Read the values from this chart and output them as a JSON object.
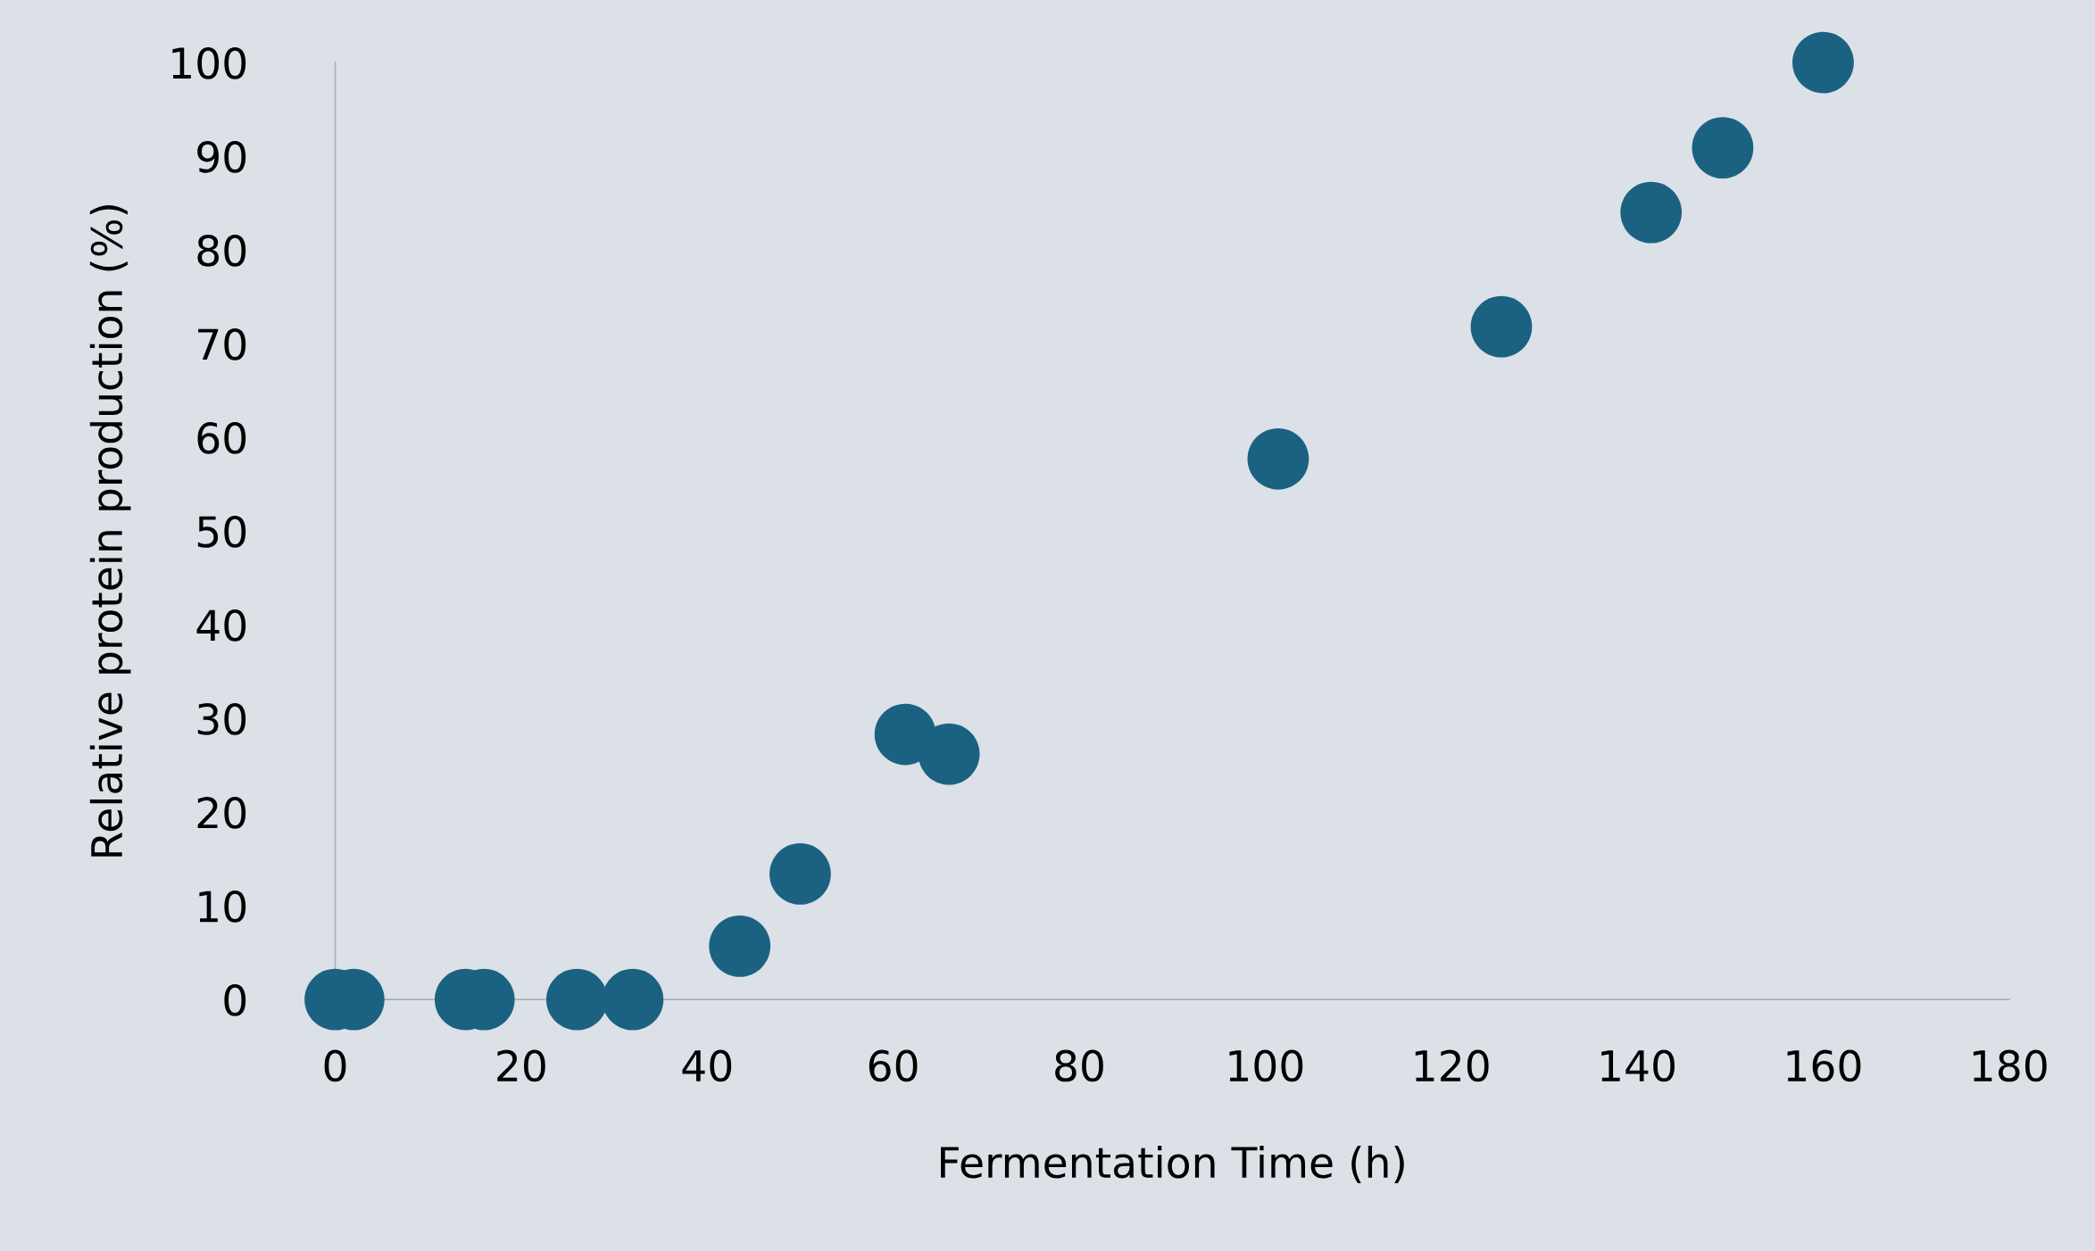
{
  "chart_data": {
    "type": "scatter",
    "xlabel": "Fermentation Time (h)",
    "ylabel": "Relative protein production (%)",
    "x": [
      0,
      2,
      14,
      16,
      26,
      32,
      43.5,
      50,
      61.3,
      66,
      101.4,
      125.4,
      141.5,
      149.2,
      160
    ],
    "series": [
      {
        "color": "#1b6282",
        "values": [
          0,
          0,
          0,
          0,
          0,
          0,
          5.7,
          13.4,
          28.3,
          26.2,
          57.7,
          71.8,
          84.0,
          90.9,
          100
        ]
      }
    ],
    "marker": "circle",
    "grid": false,
    "legend": false,
    "xlim": [
      0,
      180
    ],
    "xticks": [
      0,
      20,
      40,
      60,
      80,
      100,
      120,
      140,
      160,
      180
    ],
    "ylim": [
      0,
      100
    ],
    "yticks": [
      0,
      10,
      20,
      30,
      40,
      50,
      60,
      70,
      80,
      90,
      100
    ]
  }
}
